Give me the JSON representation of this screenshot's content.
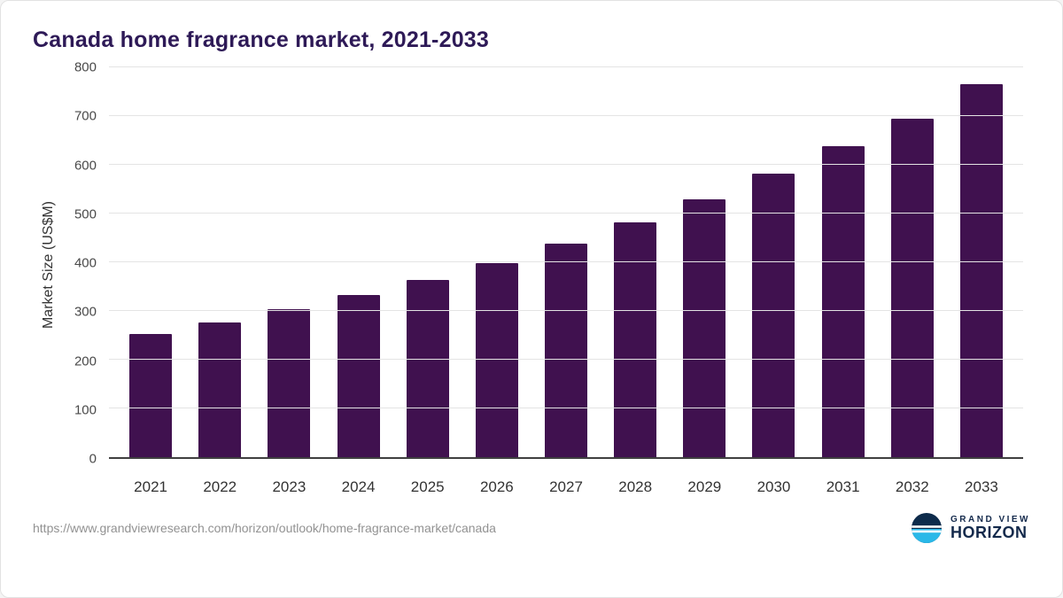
{
  "title": "Canada home fragrance market, 2021-2033",
  "chart_data": {
    "type": "bar",
    "categories": [
      "2021",
      "2022",
      "2023",
      "2024",
      "2025",
      "2026",
      "2027",
      "2028",
      "2029",
      "2030",
      "2031",
      "2032",
      "2033"
    ],
    "values": [
      253,
      276,
      304,
      333,
      363,
      399,
      439,
      481,
      530,
      581,
      639,
      694,
      766
    ],
    "title": "Canada home fragrance market, 2021-2033",
    "xlabel": "",
    "ylabel": "Market Size (US$M)",
    "ylim": [
      0,
      800
    ],
    "ytick_step": 100,
    "grid": true,
    "legend": "none",
    "bar_color": "#40114f"
  },
  "footer": {
    "source_url": "https://www.grandviewresearch.com/horizon/outlook/home-fragrance-market/canada",
    "brand": {
      "line1": "GRAND VIEW",
      "line2": "HORIZON",
      "logo_dark": "#0d2b4b",
      "logo_teal": "#2ab8e8"
    }
  }
}
